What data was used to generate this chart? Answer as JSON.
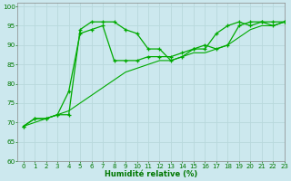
{
  "xlabel": "Humidité relative (%)",
  "background_color": "#cce8ee",
  "grid_color": "#aacccc",
  "line_color": "#00aa00",
  "xlim": [
    -0.5,
    23
  ],
  "ylim": [
    60,
    101
  ],
  "xticks": [
    0,
    1,
    2,
    3,
    4,
    5,
    6,
    7,
    8,
    9,
    10,
    11,
    12,
    13,
    14,
    15,
    16,
    17,
    18,
    19,
    20,
    21,
    22,
    23
  ],
  "yticks": [
    60,
    65,
    70,
    75,
    80,
    85,
    90,
    95,
    100
  ],
  "series1_x": [
    0,
    1,
    2,
    3,
    4,
    5,
    6,
    7,
    8,
    9,
    10,
    11,
    12,
    13,
    14,
    15,
    16,
    17,
    18,
    19,
    20,
    21,
    22,
    23
  ],
  "series1_y": [
    69,
    71,
    71,
    72,
    72,
    94,
    96,
    96,
    96,
    94,
    93,
    89,
    89,
    86,
    87,
    89,
    90,
    89,
    90,
    95,
    96,
    96,
    96,
    96
  ],
  "series2_x": [
    0,
    1,
    2,
    3,
    4,
    5,
    6,
    7,
    8,
    9,
    10,
    11,
    12,
    13,
    14,
    15,
    16,
    17,
    18,
    19,
    20,
    21,
    22,
    23
  ],
  "series2_y": [
    69,
    71,
    71,
    72,
    78,
    93,
    94,
    95,
    86,
    86,
    86,
    87,
    87,
    87,
    88,
    89,
    89,
    93,
    95,
    96,
    95,
    96,
    95,
    96
  ],
  "series3_x": [
    0,
    1,
    2,
    3,
    4,
    5,
    6,
    7,
    8,
    9,
    10,
    11,
    12,
    13,
    14,
    15,
    16,
    17,
    18,
    19,
    20,
    21,
    22,
    23
  ],
  "series3_y": [
    69,
    70,
    71,
    72,
    73,
    75,
    77,
    79,
    81,
    83,
    84,
    85,
    86,
    86,
    87,
    88,
    88,
    89,
    90,
    92,
    94,
    95,
    95,
    96
  ]
}
